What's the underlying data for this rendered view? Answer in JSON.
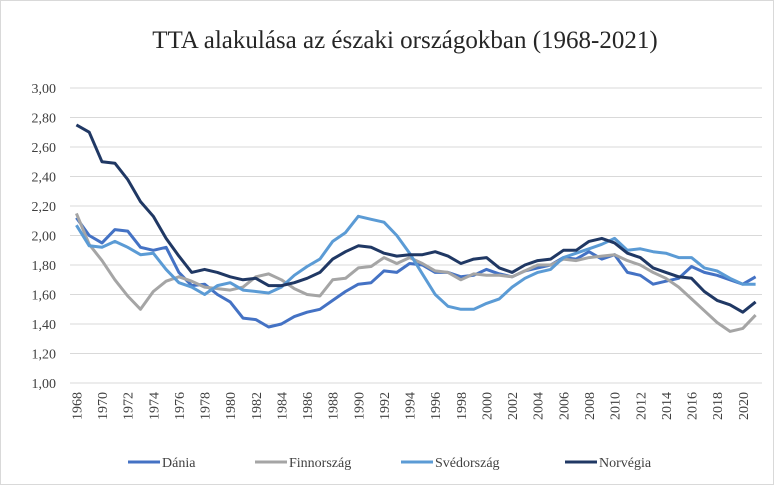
{
  "chart_data": {
    "type": "line",
    "title": "TTA alakulása az északi országokban (1968-2021)",
    "categories": [
      "1968",
      null,
      "1970",
      null,
      "1972",
      null,
      "1974",
      null,
      "1976",
      null,
      "1978",
      null,
      "1980",
      null,
      "1982",
      null,
      "1984",
      null,
      "1986",
      null,
      "1988",
      null,
      "1990",
      null,
      "1992",
      null,
      "1994",
      null,
      "1996",
      null,
      "1998",
      null,
      "2000",
      null,
      "2002",
      null,
      "2004",
      null,
      "2006",
      null,
      "2008",
      null,
      "2010",
      null,
      "2012",
      null,
      "2014",
      null,
      "2016",
      null,
      "2018",
      null,
      "2020",
      null
    ],
    "ylim": [
      1,
      3
    ],
    "yticks": [
      {
        "value": 1,
        "label": "1,00"
      },
      {
        "value": 1.2,
        "label": "1,20"
      },
      {
        "value": 1.4,
        "label": "1,40"
      },
      {
        "value": 1.6,
        "label": "1,60"
      },
      {
        "value": 1.8,
        "label": "1,80"
      },
      {
        "value": 2,
        "label": "2,00"
      },
      {
        "value": 2.2,
        "label": "2,20"
      },
      {
        "value": 2.4,
        "label": "2,40"
      },
      {
        "value": 2.6,
        "label": "2,60"
      },
      {
        "value": 2.8,
        "label": "2,80"
      },
      {
        "value": 3,
        "label": "3,00"
      }
    ],
    "grid": true,
    "legend": "bottom",
    "series": [
      {
        "name": "Dánia",
        "color": "#4472c4",
        "values": [
          2.12,
          2.0,
          1.95,
          2.04,
          2.03,
          1.92,
          1.9,
          1.92,
          1.75,
          1.66,
          1.67,
          1.6,
          1.55,
          1.44,
          1.43,
          1.38,
          1.4,
          1.45,
          1.48,
          1.5,
          1.56,
          1.62,
          1.67,
          1.68,
          1.76,
          1.75,
          1.81,
          1.8,
          1.75,
          1.75,
          1.72,
          1.73,
          1.77,
          1.74,
          1.72,
          1.76,
          1.78,
          1.8,
          1.85,
          1.84,
          1.89,
          1.84,
          1.87,
          1.75,
          1.73,
          1.67,
          1.69,
          1.71,
          1.79,
          1.75,
          1.73,
          1.7,
          1.67,
          1.72
        ]
      },
      {
        "name": "Finnország",
        "color": "#a5a5a5",
        "values": [
          2.15,
          1.94,
          1.83,
          1.7,
          1.59,
          1.5,
          1.62,
          1.69,
          1.72,
          1.69,
          1.65,
          1.64,
          1.63,
          1.65,
          1.72,
          1.74,
          1.7,
          1.64,
          1.6,
          1.59,
          1.7,
          1.71,
          1.78,
          1.79,
          1.85,
          1.81,
          1.85,
          1.81,
          1.76,
          1.75,
          1.7,
          1.74,
          1.73,
          1.73,
          1.72,
          1.76,
          1.8,
          1.8,
          1.84,
          1.83,
          1.85,
          1.86,
          1.87,
          1.83,
          1.8,
          1.75,
          1.71,
          1.65,
          1.57,
          1.49,
          1.41,
          1.35,
          1.37,
          1.46
        ]
      },
      {
        "name": "Svédország",
        "color": "#5b9bd5",
        "values": [
          2.07,
          1.93,
          1.92,
          1.96,
          1.92,
          1.87,
          1.88,
          1.77,
          1.68,
          1.65,
          1.6,
          1.66,
          1.68,
          1.63,
          1.62,
          1.61,
          1.65,
          1.73,
          1.79,
          1.84,
          1.96,
          2.02,
          2.13,
          2.11,
          2.09,
          2.0,
          1.88,
          1.74,
          1.6,
          1.52,
          1.5,
          1.5,
          1.54,
          1.57,
          1.65,
          1.71,
          1.75,
          1.77,
          1.85,
          1.88,
          1.91,
          1.94,
          1.98,
          1.9,
          1.91,
          1.89,
          1.88,
          1.85,
          1.85,
          1.78,
          1.76,
          1.71,
          1.67,
          1.67
        ]
      },
      {
        "name": "Norvégia",
        "color": "#203864",
        "values": [
          2.75,
          2.7,
          2.5,
          2.49,
          2.38,
          2.23,
          2.13,
          1.98,
          1.86,
          1.75,
          1.77,
          1.75,
          1.72,
          1.7,
          1.71,
          1.66,
          1.66,
          1.68,
          1.71,
          1.75,
          1.84,
          1.89,
          1.93,
          1.92,
          1.88,
          1.86,
          1.87,
          1.87,
          1.89,
          1.86,
          1.81,
          1.84,
          1.85,
          1.78,
          1.75,
          1.8,
          1.83,
          1.84,
          1.9,
          1.9,
          1.96,
          1.98,
          1.95,
          1.88,
          1.85,
          1.78,
          1.75,
          1.72,
          1.71,
          1.62,
          1.56,
          1.53,
          1.48,
          1.55
        ]
      }
    ]
  }
}
